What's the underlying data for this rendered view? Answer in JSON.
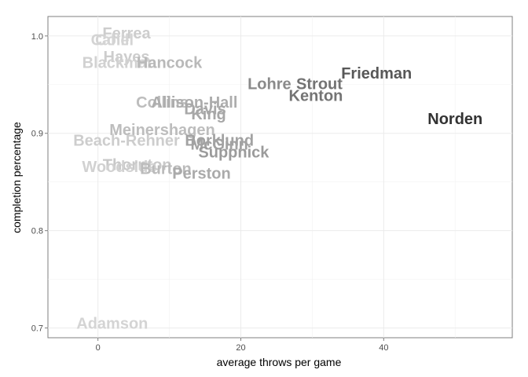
{
  "chart_data": {
    "type": "scatter",
    "xlabel": "average throws per game",
    "ylabel": "completion percentage",
    "xlim": [
      -7,
      58
    ],
    "ylim": [
      0.69,
      1.02
    ],
    "xticks": [
      0,
      20,
      40
    ],
    "xtick_labels": [
      "0",
      "20",
      "40"
    ],
    "yticks": [
      0.7,
      0.8,
      0.9,
      1.0
    ],
    "ytick_labels": [
      "0.7",
      "0.8",
      "0.9",
      "1.0"
    ],
    "grid": true,
    "label_color_scale": "grey shade increases with average throws per game",
    "points": [
      {
        "name": "Ferrea",
        "x": 4,
        "y": 1.003
      },
      {
        "name": "Cahill",
        "x": 2,
        "y": 0.996
      },
      {
        "name": "Cole",
        "x": 2,
        "y": 0.996
      },
      {
        "name": "Hayes",
        "x": 4,
        "y": 0.979
      },
      {
        "name": "Blackman",
        "x": 3,
        "y": 0.973
      },
      {
        "name": "Hancock",
        "x": 10,
        "y": 0.973
      },
      {
        "name": "Friedman",
        "x": 39,
        "y": 0.962
      },
      {
        "name": "Lohre",
        "x": 24,
        "y": 0.951
      },
      {
        "name": "Strout",
        "x": 31,
        "y": 0.951
      },
      {
        "name": "Kenton",
        "x": 30.5,
        "y": 0.939
      },
      {
        "name": "Norden",
        "x": 50,
        "y": 0.915
      },
      {
        "name": "Collins",
        "x": 9,
        "y": 0.932
      },
      {
        "name": "Allison-Hall",
        "x": 13.5,
        "y": 0.932
      },
      {
        "name": "Davis",
        "x": 15,
        "y": 0.925
      },
      {
        "name": "King",
        "x": 15.5,
        "y": 0.92
      },
      {
        "name": "Meinershagen",
        "x": 9,
        "y": 0.904
      },
      {
        "name": "Beach-Rehner",
        "x": 4,
        "y": 0.893
      },
      {
        "name": "Borklund",
        "x": 17,
        "y": 0.893
      },
      {
        "name": "McGinn",
        "x": 17,
        "y": 0.889
      },
      {
        "name": "Suppnick",
        "x": 19,
        "y": 0.881
      },
      {
        "name": "Thornton",
        "x": 5.5,
        "y": 0.868
      },
      {
        "name": "Woodside",
        "x": 3,
        "y": 0.866
      },
      {
        "name": "Burton",
        "x": 9.5,
        "y": 0.864
      },
      {
        "name": "Perston",
        "x": 14.5,
        "y": 0.859
      },
      {
        "name": "Adamson",
        "x": 2,
        "y": 0.705
      }
    ]
  }
}
